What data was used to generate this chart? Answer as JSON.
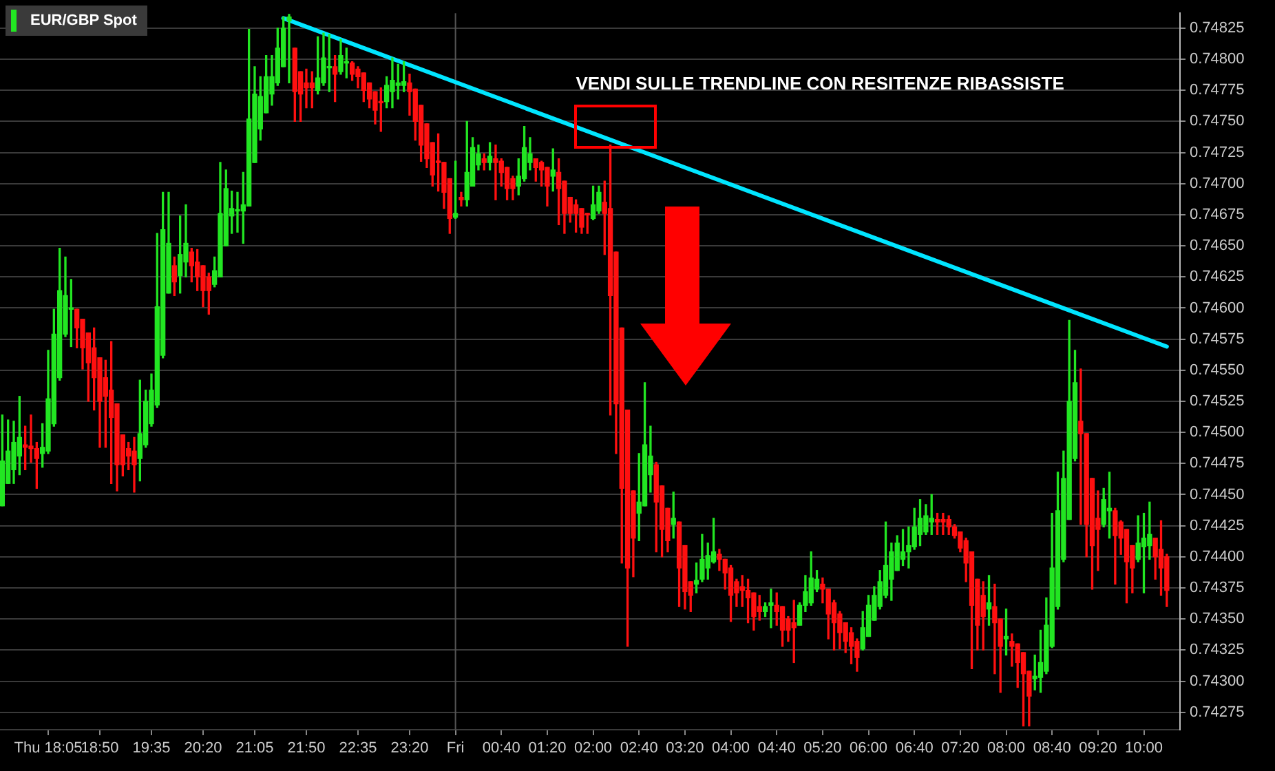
{
  "chart_data": {
    "type": "candlestick",
    "annotations": [
      "VENDI SULLE TRENDLINE CON RESITENZE RIBASSISTE"
    ],
    "categories": [
      null,
      null,
      null,
      null,
      null,
      null,
      null,
      null,
      "Thu 18:05",
      null,
      null,
      null,
      null,
      null,
      null,
      null,
      null,
      "18:50",
      null,
      null,
      null,
      null,
      null,
      null,
      null,
      null,
      "19:35",
      null,
      null,
      null,
      null,
      null,
      null,
      null,
      null,
      "20:20",
      null,
      null,
      null,
      null,
      null,
      null,
      null,
      null,
      "21:05",
      null,
      null,
      null,
      null,
      null,
      null,
      null,
      null,
      "21:50",
      null,
      null,
      null,
      null,
      null,
      null,
      null,
      null,
      "22:35",
      null,
      null,
      null,
      null,
      null,
      null,
      null,
      null,
      "23:20",
      null,
      null,
      null,
      null,
      null,
      null,
      null,
      "Fri",
      null,
      null,
      null,
      null,
      null,
      null,
      null,
      "00:40",
      null,
      null,
      null,
      null,
      null,
      null,
      null,
      "01:20",
      null,
      null,
      null,
      null,
      null,
      null,
      null,
      "02:00",
      null,
      null,
      null,
      null,
      null,
      null,
      null,
      "02:40",
      null,
      null,
      null,
      null,
      null,
      null,
      null,
      "03:20",
      null,
      null,
      null,
      null,
      null,
      null,
      null,
      "04:00",
      null,
      null,
      null,
      null,
      null,
      null,
      null,
      "04:40",
      null,
      null,
      null,
      null,
      null,
      null,
      null,
      "05:20",
      null,
      null,
      null,
      null,
      null,
      null,
      null,
      "06:00",
      null,
      null,
      null,
      null,
      null,
      null,
      null,
      "06:40",
      null,
      null,
      null,
      null,
      null,
      null,
      null,
      "07:20",
      null,
      null,
      null,
      null,
      null,
      null,
      null,
      "08:00",
      null,
      null,
      null,
      null,
      null,
      null,
      null,
      "08:40",
      null,
      null,
      null,
      null,
      null,
      null,
      null,
      "09:20",
      null,
      null,
      null,
      null,
      null,
      null,
      null,
      "10:00",
      null,
      null,
      null,
      null
    ],
    "ylim": [
      0.74261,
      0.74837
    ],
    "yticks": [
      0.74275,
      {
        "value": 0.743,
        "label": "0.74300"
      },
      0.74325,
      {
        "value": 0.7435,
        "label": "0.74350"
      },
      0.74375,
      {
        "value": 0.744,
        "label": "0.74400"
      },
      0.74425,
      {
        "value": 0.7445,
        "label": "0.74450"
      },
      0.74475,
      {
        "value": 0.745,
        "label": "0.74500"
      },
      0.74525,
      {
        "value": 0.7455,
        "label": "0.74550"
      },
      0.74575,
      {
        "value": 0.746,
        "label": "0.74600"
      },
      0.74625,
      {
        "value": 0.7465,
        "label": "0.74650"
      },
      0.74675,
      {
        "value": 0.747,
        "label": "0.74700"
      },
      0.74725,
      {
        "value": 0.7475,
        "label": "0.74750"
      },
      0.74775,
      {
        "value": 0.748,
        "label": "0.74800"
      },
      0.74825
    ],
    "grid": "y",
    "legend": "top left",
    "ref_lines": [
      {
        "axis": "x",
        "value": "Fri",
        "color": "#555555"
      }
    ],
    "series": [
      {
        "name": "EUR/GBP Spot",
        "color": "#22e622",
        "colors": [
          "#22e622",
          "#22e622",
          "#22e622",
          "#22e622",
          "#ff1010",
          "#ff1010",
          "#ff1010",
          "#22e622",
          "#22e622",
          "#22e622",
          "#22e622",
          "#22e622",
          "#22e622",
          "#ff1010",
          "#ff1010",
          "#ff1010",
          "#ff1010",
          "#ff1010",
          "#ff1010",
          "#ff1010",
          "#ff1010",
          "#ff1010",
          "#ff1010",
          "#ff1010",
          "#22e622",
          "#22e622",
          "#22e622",
          "#22e622",
          "#22e622",
          "#22e622",
          "#ff1010",
          "#22e622",
          "#22e622",
          "#ff1010",
          "#ff1010",
          "#ff1010",
          "#ff1010",
          "#22e622",
          "#22e622",
          "#22e622",
          "#22e622",
          "#22e622",
          "#22e622",
          "#22e622",
          "#22e622",
          "#22e622",
          "#22e622",
          "#22e622",
          "#22e622",
          "#22e622",
          "#22e622",
          "#ff1010",
          "#ff1010",
          "#ff1010",
          "#ff1010",
          "#22e622",
          "#22e622",
          "#22e622",
          "#ff1010",
          "#22e622",
          "#22e622",
          "#ff1010",
          "#ff1010",
          "#ff1010",
          "#ff1010",
          "#ff1010",
          "#ff1010",
          "#22e622",
          "#22e622",
          "#22e622",
          "#22e622",
          "#ff1010",
          "#ff1010",
          "#ff1010",
          "#ff1010",
          "#ff1010",
          "#ff1010",
          "#ff1010",
          "#ff1010",
          "#22e622",
          "#ff1010",
          "#22e622",
          "#22e622",
          "#22e622",
          "#ff1010",
          "#22e622",
          "#ff1010",
          "#ff1010",
          "#ff1010",
          "#ff1010",
          "#22e622",
          "#22e622",
          "#22e622",
          "#ff1010",
          "#ff1010",
          "#ff1010",
          "#22e622",
          "#ff1010",
          "#ff1010",
          "#ff1010",
          "#ff1010",
          "#ff1010",
          "#ff1010",
          "#22e622",
          "#22e622",
          "#ff1010",
          "#ff1010",
          "#ff1010",
          "#ff1010",
          "#ff1010",
          "#ff1010",
          "#22e622",
          "#22e622",
          "#22e622",
          "#ff1010",
          "#ff1010",
          "#ff1010",
          "#22e622",
          "#ff1010",
          "#ff1010",
          "#ff1010",
          "#22e622",
          "#22e622",
          "#22e622",
          "#22e622",
          "#ff1010",
          "#ff1010",
          "#ff1010",
          "#ff1010",
          "#ff1010",
          "#ff1010",
          "#ff1010",
          "#ff1010",
          "#22e622",
          "#22e622",
          "#ff1010",
          "#ff1010",
          "#ff1010",
          "#ff1010",
          "#22e622",
          "#22e622",
          "#22e622",
          "#22e622",
          "#ff1010",
          "#ff1010",
          "#ff1010",
          "#ff1010",
          "#ff1010",
          "#ff1010",
          "#ff1010",
          "#22e622",
          "#22e622",
          "#22e622",
          "#22e622",
          "#22e622",
          "#22e622",
          "#22e622",
          "#22e622",
          "#22e622",
          "#22e622",
          "#22e622",
          "#22e622",
          "#22e622",
          "#ff1010",
          "#ff1010",
          "#ff1010",
          "#ff1010",
          "#ff1010",
          "#ff1010",
          "#ff1010",
          "#ff1010",
          "#ff1010",
          "#22e622",
          "#ff1010",
          "#ff1010",
          "#22e622",
          "#ff1010",
          "#ff1010",
          "#ff1010",
          "#ff1010",
          "#22e622",
          "#22e622",
          "#22e622",
          "#22e622",
          "#22e622",
          "#22e622",
          "#22e622",
          "#22e622",
          "#ff1010",
          "#ff1010",
          "#ff1010",
          "#ff1010",
          "#22e622",
          "#22e622",
          "#ff1010",
          "#ff1010",
          "#ff1010",
          "#ff1010",
          "#22e622",
          "#22e622",
          "#22e622",
          "#ff1010",
          "#ff1010",
          "#ff1010"
        ],
        "ohlc": [
          [
            0.74441,
            0.74514,
            0.74441,
            0.74477
          ],
          [
            0.74459,
            0.7451,
            0.74459,
            0.74485
          ],
          [
            0.7447,
            0.74509,
            0.74459,
            0.74492
          ],
          [
            0.74481,
            0.74529,
            0.74466,
            0.74496
          ],
          [
            0.7449,
            0.74505,
            0.7447,
            0.74488
          ],
          [
            0.74489,
            0.74514,
            0.74476,
            0.74487
          ],
          [
            0.74487,
            0.74492,
            0.74455,
            0.74479
          ],
          [
            0.74483,
            0.74507,
            0.74472,
            0.74488
          ],
          [
            0.74485,
            0.74566,
            0.74483,
            0.74527
          ],
          [
            0.74507,
            0.74599,
            0.74505,
            0.74579
          ],
          [
            0.74544,
            0.74648,
            0.74542,
            0.74614
          ],
          [
            0.74579,
            0.74641,
            0.74577,
            0.7461
          ],
          [
            0.74599,
            0.74623,
            0.74569,
            0.746
          ],
          [
            0.74599,
            0.74599,
            0.74568,
            0.74584
          ],
          [
            0.74591,
            0.74591,
            0.74551,
            0.74568
          ],
          [
            0.7458,
            0.7458,
            0.74525,
            0.74556
          ],
          [
            0.74568,
            0.74584,
            0.74518,
            0.74544
          ],
          [
            0.7456,
            0.7456,
            0.74488,
            0.74525
          ],
          [
            0.74544,
            0.74558,
            0.74488,
            0.74529
          ],
          [
            0.74534,
            0.74573,
            0.74459,
            0.74512
          ],
          [
            0.74523,
            0.74523,
            0.74453,
            0.74474
          ],
          [
            0.74498,
            0.74498,
            0.74465,
            0.74474
          ],
          [
            0.74487,
            0.74492,
            0.7447,
            0.74481
          ],
          [
            0.74485,
            0.74496,
            0.74452,
            0.74474
          ],
          [
            0.74479,
            0.74542,
            0.74461,
            0.74499
          ],
          [
            0.7449,
            0.74534,
            0.74488,
            0.74525
          ],
          [
            0.74507,
            0.74547,
            0.74505,
            0.74534
          ],
          [
            0.74522,
            0.7466,
            0.7452,
            0.74601
          ],
          [
            0.74562,
            0.74693,
            0.7456,
            0.74663
          ],
          [
            0.74612,
            0.74693,
            0.74612,
            0.74652
          ],
          [
            0.74634,
            0.74641,
            0.7461,
            0.74621
          ],
          [
            0.74626,
            0.74674,
            0.74612,
            0.74643
          ],
          [
            0.74637,
            0.74683,
            0.74625,
            0.74652
          ],
          [
            0.74645,
            0.74648,
            0.74621,
            0.74634
          ],
          [
            0.74637,
            0.74647,
            0.74614,
            0.74625
          ],
          [
            0.74634,
            0.74634,
            0.74601,
            0.74614
          ],
          [
            0.74625,
            0.74628,
            0.74595,
            0.74614
          ],
          [
            0.74619,
            0.74641,
            0.74617,
            0.7463
          ],
          [
            0.74625,
            0.74717,
            0.74625,
            0.74676
          ],
          [
            0.7465,
            0.74711,
            0.7465,
            0.74696
          ],
          [
            0.74674,
            0.74694,
            0.7466,
            0.7468
          ],
          [
            0.74678,
            0.74693,
            0.74661,
            0.74679
          ],
          [
            0.74678,
            0.74709,
            0.74652,
            0.74683
          ],
          [
            0.74682,
            0.74824,
            0.74682,
            0.74752
          ],
          [
            0.74717,
            0.74794,
            0.74717,
            0.74772
          ],
          [
            0.74744,
            0.74786,
            0.74735,
            0.7477
          ],
          [
            0.74757,
            0.74803,
            0.74757,
            0.74786
          ],
          [
            0.74772,
            0.74803,
            0.74763,
            0.74786
          ],
          [
            0.74781,
            0.74825,
            0.74779,
            0.74809
          ],
          [
            0.74794,
            0.74834,
            0.74794,
            0.74825
          ],
          [
            0.74831,
            0.74836,
            0.74781,
            0.74834
          ],
          [
            0.74809,
            0.74809,
            0.7475,
            0.74774
          ],
          [
            0.7479,
            0.7479,
            0.7475,
            0.74772
          ],
          [
            0.74781,
            0.74792,
            0.74761,
            0.74777
          ],
          [
            0.74781,
            0.7479,
            0.74761,
            0.74777
          ],
          [
            0.74775,
            0.74818,
            0.74772,
            0.74785
          ],
          [
            0.74781,
            0.74821,
            0.74779,
            0.74801
          ],
          [
            0.74793,
            0.7482,
            0.74774,
            0.74794
          ],
          [
            0.74794,
            0.74803,
            0.74766,
            0.74788
          ],
          [
            0.7479,
            0.74816,
            0.74788,
            0.74803
          ],
          [
            0.74797,
            0.74809,
            0.74785,
            0.74798
          ],
          [
            0.74797,
            0.74798,
            0.74783,
            0.74788
          ],
          [
            0.74792,
            0.74794,
            0.74777,
            0.74786
          ],
          [
            0.74789,
            0.74789,
            0.74766,
            0.74775
          ],
          [
            0.74781,
            0.74781,
            0.74761,
            0.74768
          ],
          [
            0.74774,
            0.74774,
            0.74748,
            0.74759
          ],
          [
            0.74766,
            0.74777,
            0.74742,
            0.74765
          ],
          [
            0.74766,
            0.74786,
            0.74761,
            0.74779
          ],
          [
            0.74774,
            0.74801,
            0.74761,
            0.74783
          ],
          [
            0.74779,
            0.74796,
            0.74768,
            0.74781
          ],
          [
            0.74779,
            0.74798,
            0.74774,
            0.74782
          ],
          [
            0.74781,
            0.74788,
            0.74755,
            0.74774
          ],
          [
            0.74776,
            0.74776,
            0.74735,
            0.7475
          ],
          [
            0.74763,
            0.74763,
            0.74718,
            0.74731
          ],
          [
            0.74748,
            0.74748,
            0.74713,
            0.7472
          ],
          [
            0.74733,
            0.74733,
            0.74698,
            0.74707
          ],
          [
            0.74718,
            0.7474,
            0.74694,
            0.74717
          ],
          [
            0.74717,
            0.74717,
            0.7468,
            0.74693
          ],
          [
            0.74704,
            0.74704,
            0.7466,
            0.74672
          ],
          [
            0.74673,
            0.74718,
            0.74672,
            0.74676
          ],
          [
            0.74689,
            0.74693,
            0.74682,
            0.74687
          ],
          [
            0.74687,
            0.7475,
            0.74682,
            0.74709
          ],
          [
            0.74698,
            0.74737,
            0.74698,
            0.74729
          ],
          [
            0.74715,
            0.74731,
            0.74711,
            0.74724
          ],
          [
            0.7472,
            0.74724,
            0.74711,
            0.74717
          ],
          [
            0.74717,
            0.74733,
            0.74711,
            0.74722
          ],
          [
            0.7472,
            0.74731,
            0.74687,
            0.74717
          ],
          [
            0.74718,
            0.7472,
            0.74698,
            0.74709
          ],
          [
            0.74713,
            0.74713,
            0.74687,
            0.74696
          ],
          [
            0.74704,
            0.74706,
            0.74687,
            0.74696
          ],
          [
            0.74698,
            0.7472,
            0.74691,
            0.74706
          ],
          [
            0.74704,
            0.74746,
            0.74702,
            0.74729
          ],
          [
            0.74717,
            0.74737,
            0.74711,
            0.74724
          ],
          [
            0.7472,
            0.7472,
            0.74702,
            0.74713
          ],
          [
            0.74717,
            0.74718,
            0.74698,
            0.74711
          ],
          [
            0.74713,
            0.74713,
            0.74682,
            0.74698
          ],
          [
            0.74706,
            0.74728,
            0.74694,
            0.74711
          ],
          [
            0.74709,
            0.7472,
            0.74667,
            0.74696
          ],
          [
            0.74702,
            0.74702,
            0.7466,
            0.74676
          ],
          [
            0.74689,
            0.74689,
            0.74669,
            0.74676
          ],
          [
            0.74683,
            0.74687,
            0.74661,
            0.74676
          ],
          [
            0.7468,
            0.7468,
            0.7466,
            0.74665
          ],
          [
            0.74676,
            0.74676,
            0.7466,
            0.74675
          ],
          [
            0.74672,
            0.74698,
            0.74671,
            0.74683
          ],
          [
            0.74678,
            0.74698,
            0.74676,
            0.74693
          ],
          [
            0.74685,
            0.74702,
            0.74643,
            0.74676
          ],
          [
            0.7468,
            0.74731,
            0.74514,
            0.7461
          ],
          [
            0.74645,
            0.74645,
            0.74483,
            0.74523
          ],
          [
            0.74584,
            0.74584,
            0.74395,
            0.74455
          ],
          [
            0.74518,
            0.74518,
            0.74328,
            0.74391
          ],
          [
            0.74453,
            0.74453,
            0.74384,
            0.74415
          ],
          [
            0.74435,
            0.74483,
            0.74413,
            0.74444
          ],
          [
            0.74441,
            0.7454,
            0.74441,
            0.7449
          ],
          [
            0.74466,
            0.74505,
            0.74452,
            0.74481
          ],
          [
            0.74474,
            0.74476,
            0.74404,
            0.74444
          ],
          [
            0.74457,
            0.74457,
            0.744,
            0.74422
          ],
          [
            0.74439,
            0.74439,
            0.74404,
            0.74413
          ],
          [
            0.74426,
            0.74452,
            0.74415,
            0.74431
          ],
          [
            0.74428,
            0.74428,
            0.7436,
            0.74391
          ],
          [
            0.74409,
            0.74409,
            0.74358,
            0.74372
          ],
          [
            0.7438,
            0.7438,
            0.74356,
            0.74369
          ],
          [
            0.74378,
            0.74395,
            0.74371,
            0.74381
          ],
          [
            0.74382,
            0.74418,
            0.7438,
            0.74398
          ],
          [
            0.74391,
            0.74411,
            0.74382,
            0.74401
          ],
          [
            0.74396,
            0.74431,
            0.74395,
            0.74404
          ],
          [
            0.74402,
            0.74406,
            0.74389,
            0.74398
          ],
          [
            0.74398,
            0.74398,
            0.74374,
            0.74387
          ],
          [
            0.74391,
            0.74393,
            0.74348,
            0.74369
          ],
          [
            0.7438,
            0.74382,
            0.7436,
            0.74371
          ],
          [
            0.74376,
            0.74385,
            0.7436,
            0.74373
          ],
          [
            0.74373,
            0.74382,
            0.74347,
            0.74367
          ],
          [
            0.74371,
            0.74371,
            0.74341,
            0.74352
          ],
          [
            0.7436,
            0.74369,
            0.74349,
            0.74356
          ],
          [
            0.74356,
            0.74363,
            0.74352,
            0.7436
          ],
          [
            0.74361,
            0.74374,
            0.74343,
            0.74363
          ],
          [
            0.74361,
            0.74371,
            0.74345,
            0.74356
          ],
          [
            0.7436,
            0.7436,
            0.74328,
            0.74341
          ],
          [
            0.7435,
            0.74352,
            0.74332,
            0.74341
          ],
          [
            0.74347,
            0.74365,
            0.74315,
            0.74343
          ],
          [
            0.74345,
            0.74363,
            0.74345,
            0.74361
          ],
          [
            0.74361,
            0.74385,
            0.74356,
            0.74372
          ],
          [
            0.74363,
            0.74404,
            0.74361,
            0.74383
          ],
          [
            0.74374,
            0.74389,
            0.74372,
            0.74382
          ],
          [
            0.74378,
            0.74383,
            0.74363,
            0.74374
          ],
          [
            0.74374,
            0.74374,
            0.74334,
            0.74354
          ],
          [
            0.74363,
            0.74365,
            0.74325,
            0.74347
          ],
          [
            0.74354,
            0.74356,
            0.74326,
            0.74339
          ],
          [
            0.74347,
            0.74347,
            0.74323,
            0.74332
          ],
          [
            0.74339,
            0.74343,
            0.74314,
            0.74328
          ],
          [
            0.74332,
            0.74334,
            0.74308,
            0.74319
          ],
          [
            0.74326,
            0.74356,
            0.74325,
            0.74343
          ],
          [
            0.74336,
            0.74369,
            0.74336,
            0.74361
          ],
          [
            0.74349,
            0.74376,
            0.74349,
            0.74369
          ],
          [
            0.7436,
            0.74389,
            0.74358,
            0.7438
          ],
          [
            0.74369,
            0.74428,
            0.74367,
            0.74393
          ],
          [
            0.74382,
            0.74411,
            0.74365,
            0.74404
          ],
          [
            0.74389,
            0.74417,
            0.74389,
            0.74411
          ],
          [
            0.74398,
            0.74422,
            0.74393,
            0.74404
          ],
          [
            0.74404,
            0.74424,
            0.74391,
            0.74409
          ],
          [
            0.74408,
            0.74439,
            0.74406,
            0.74424
          ],
          [
            0.74418,
            0.74446,
            0.74409,
            0.74431
          ],
          [
            0.7442,
            0.74442,
            0.74418,
            0.74433
          ],
          [
            0.74428,
            0.7445,
            0.74418,
            0.74431
          ],
          [
            0.7443,
            0.74435,
            0.74418,
            0.74428
          ],
          [
            0.7443,
            0.74435,
            0.74418,
            0.74428
          ],
          [
            0.7443,
            0.74433,
            0.74418,
            0.74424
          ],
          [
            0.74424,
            0.74426,
            0.74415,
            0.74417
          ],
          [
            0.7442,
            0.7442,
            0.74404,
            0.74407
          ],
          [
            0.74413,
            0.74415,
            0.7438,
            0.74395
          ],
          [
            0.74404,
            0.74404,
            0.7431,
            0.74361
          ],
          [
            0.74382,
            0.74382,
            0.74325,
            0.74345
          ],
          [
            0.74369,
            0.7438,
            0.74325,
            0.74352
          ],
          [
            0.74358,
            0.74385,
            0.74345,
            0.74363
          ],
          [
            0.7436,
            0.74378,
            0.74306,
            0.74347
          ],
          [
            0.7435,
            0.7435,
            0.74291,
            0.74328
          ],
          [
            0.74334,
            0.74358,
            0.74321,
            0.74336
          ],
          [
            0.74332,
            0.74338,
            0.74312,
            0.74328
          ],
          [
            0.7433,
            0.7433,
            0.74295,
            0.74315
          ],
          [
            0.74323,
            0.74323,
            0.74264,
            0.74306
          ],
          [
            0.74308,
            0.74308,
            0.74264,
            0.74288
          ],
          [
            0.74302,
            0.74321,
            0.74293,
            0.74304
          ],
          [
            0.74303,
            0.74341,
            0.74291,
            0.74315
          ],
          [
            0.74308,
            0.74367,
            0.74306,
            0.74345
          ],
          [
            0.74328,
            0.74435,
            0.74327,
            0.74391
          ],
          [
            0.7436,
            0.74468,
            0.74358,
            0.74437
          ],
          [
            0.74398,
            0.74485,
            0.74396,
            0.74463
          ],
          [
            0.7443,
            0.7459,
            0.7443,
            0.74525
          ],
          [
            0.74479,
            0.74566,
            0.74477,
            0.7454
          ],
          [
            0.74509,
            0.74551,
            0.74426,
            0.74499
          ],
          [
            0.74499,
            0.74499,
            0.744,
            0.74426
          ],
          [
            0.74463,
            0.74463,
            0.74374,
            0.74409
          ],
          [
            0.74431,
            0.74453,
            0.74389,
            0.74422
          ],
          [
            0.74426,
            0.74455,
            0.74424,
            0.74446
          ],
          [
            0.74437,
            0.74468,
            0.74415,
            0.74439
          ],
          [
            0.74437,
            0.74439,
            0.74378,
            0.74417
          ],
          [
            0.74428,
            0.74429,
            0.74402,
            0.74415
          ],
          [
            0.74422,
            0.74422,
            0.74363,
            0.74396
          ],
          [
            0.74409,
            0.74409,
            0.74371,
            0.74391
          ],
          [
            0.74398,
            0.74433,
            0.74396,
            0.74411
          ],
          [
            0.74408,
            0.74435,
            0.74371,
            0.74415
          ],
          [
            0.74409,
            0.74444,
            0.74398,
            0.74418
          ],
          [
            0.74415,
            0.74415,
            0.74382,
            0.744
          ],
          [
            0.74406,
            0.74429,
            0.74369,
            0.74391
          ],
          [
            0.744,
            0.74402,
            0.7436,
            0.74373
          ]
        ]
      },
      {
        "type": "line",
        "color": "#00e5ff",
        "values": [
          null,
          null,
          null,
          null,
          null,
          null,
          null,
          null,
          null,
          null,
          null,
          null,
          null,
          null,
          null,
          null,
          null,
          null,
          null,
          null,
          null,
          null,
          null,
          null,
          null,
          null,
          null,
          null,
          null,
          null,
          null,
          null,
          null,
          null,
          null,
          null,
          null,
          null,
          null,
          null,
          null,
          null,
          null,
          null,
          null,
          null,
          null,
          null,
          null,
          0.74833,
          null,
          null,
          null,
          null,
          null,
          null,
          null,
          null,
          null,
          null,
          null,
          null,
          null,
          null,
          null,
          null,
          null,
          null,
          null,
          null,
          null,
          null,
          null,
          null,
          null,
          null,
          null,
          null,
          null,
          null,
          null,
          null,
          null,
          null,
          null,
          null,
          null,
          null,
          null,
          null,
          null,
          null,
          null,
          null,
          null,
          null,
          null,
          null,
          null,
          null,
          null,
          null,
          null,
          null,
          null,
          null,
          null,
          null,
          null,
          null,
          null,
          null,
          null,
          null,
          null,
          null,
          null,
          null,
          null,
          null,
          null,
          null,
          null,
          null,
          null,
          null,
          null,
          null,
          null,
          null,
          null,
          null,
          null,
          null,
          null,
          null,
          null,
          null,
          null,
          null,
          null,
          null,
          null,
          null,
          null,
          null,
          null,
          null,
          null,
          null,
          null,
          null,
          null,
          null,
          null,
          null,
          null,
          null,
          null,
          null,
          null,
          null,
          null,
          null,
          null,
          null,
          null,
          null,
          null,
          null,
          null,
          null,
          null,
          null,
          null,
          null,
          null,
          null,
          null,
          null,
          null,
          null,
          null,
          null,
          null,
          null,
          null,
          null,
          null,
          null,
          null,
          null,
          null,
          null,
          null,
          null,
          null,
          null,
          null,
          null,
          null,
          null,
          null,
          0.74569
        ]
      }
    ]
  }
}
